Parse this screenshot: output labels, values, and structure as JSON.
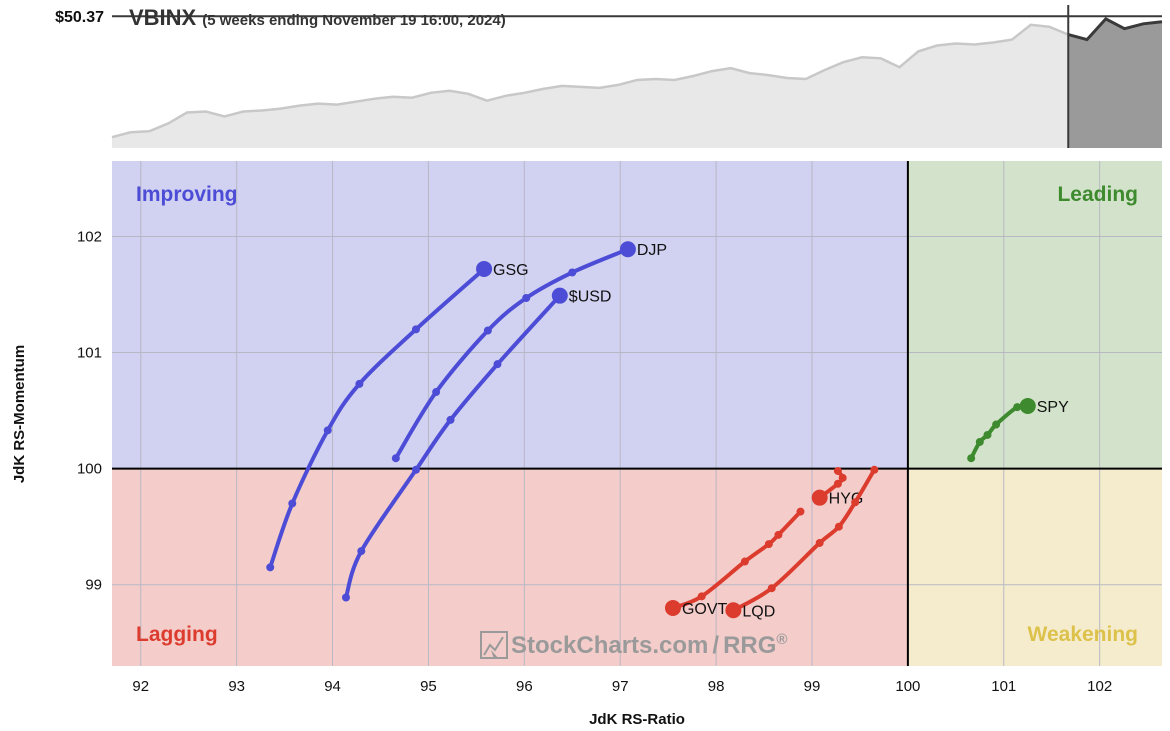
{
  "header": {
    "symbol": "VBINX",
    "subtitle": "(5 weeks ending November 19 16:00, 2024)",
    "price_label": "$50.37"
  },
  "watermark": {
    "text": "StockCharts.com",
    "separator": "/",
    "rrg": "RRG",
    "mark": "®"
  },
  "colors": {
    "improving_bg": "#d1d1f2",
    "leading_bg": "#d3e3cb",
    "lagging_bg": "#f4cdcb",
    "weakening_bg": "#f5ecce",
    "improving": "#4c4cd6",
    "leading": "#3e8a2e",
    "lagging": "#dc3c2e",
    "weakening": "#dcc24a",
    "price_fill": "#e8e8e8",
    "price_line": "#c8c8c8",
    "price_highlight_fill": "#9a9a9a",
    "price_highlight_line": "#3a3a3a"
  },
  "chart_data": {
    "type": "scatter",
    "title": "VBINX",
    "subtitle": "(5 weeks ending November 19 16:00, 2024)",
    "xlabel": "JdK RS-Ratio",
    "ylabel": "JdK RS-Momentum",
    "xlim": [
      91.7,
      102.65
    ],
    "ylim": [
      98.3,
      102.65
    ],
    "xticks": [
      92,
      93,
      94,
      95,
      96,
      97,
      98,
      99,
      100,
      101,
      102
    ],
    "yticks": [
      99,
      100,
      101,
      102
    ],
    "grid": true,
    "quadrants": [
      {
        "name": "Improving",
        "position": "top-left"
      },
      {
        "name": "Leading",
        "position": "top-right"
      },
      {
        "name": "Lagging",
        "position": "bottom-left"
      },
      {
        "name": "Weakening",
        "position": "bottom-right"
      }
    ],
    "series": [
      {
        "name": "GSG",
        "quadrant": "Improving",
        "points": [
          [
            93.35,
            99.15
          ],
          [
            93.58,
            99.7
          ],
          [
            93.95,
            100.33
          ],
          [
            94.28,
            100.73
          ],
          [
            94.87,
            101.2
          ],
          [
            95.58,
            101.72
          ]
        ]
      },
      {
        "name": "DJP",
        "quadrant": "Improving",
        "points": [
          [
            94.66,
            100.09
          ],
          [
            95.08,
            100.66
          ],
          [
            95.62,
            101.19
          ],
          [
            96.02,
            101.47
          ],
          [
            96.5,
            101.69
          ],
          [
            97.08,
            101.89
          ]
        ]
      },
      {
        "name": "$USD",
        "quadrant": "Improving",
        "points": [
          [
            94.14,
            98.89
          ],
          [
            94.3,
            99.29
          ],
          [
            94.87,
            99.99
          ],
          [
            95.23,
            100.42
          ],
          [
            95.72,
            100.9
          ],
          [
            96.37,
            101.49
          ]
        ]
      },
      {
        "name": "SPY",
        "quadrant": "Leading",
        "points": [
          [
            100.66,
            100.09
          ],
          [
            100.75,
            100.23
          ],
          [
            100.83,
            100.29
          ],
          [
            100.92,
            100.38
          ],
          [
            101.14,
            100.53
          ],
          [
            101.25,
            100.54
          ]
        ]
      },
      {
        "name": "HYG",
        "quadrant": "Lagging",
        "points": [
          [
            99.27,
            99.98
          ],
          [
            99.32,
            99.92
          ],
          [
            99.27,
            99.87
          ],
          [
            99.08,
            99.75
          ]
        ]
      },
      {
        "name": "GOVT",
        "quadrant": "Lagging",
        "points": [
          [
            98.88,
            99.63
          ],
          [
            98.65,
            99.43
          ],
          [
            98.55,
            99.35
          ],
          [
            98.3,
            99.2
          ],
          [
            97.85,
            98.9
          ],
          [
            97.55,
            98.8
          ]
        ]
      },
      {
        "name": "LQD",
        "quadrant": "Lagging",
        "points": [
          [
            99.65,
            99.99
          ],
          [
            99.45,
            99.71
          ],
          [
            99.28,
            99.5
          ],
          [
            99.08,
            99.36
          ],
          [
            98.58,
            98.97
          ],
          [
            98.18,
            98.78
          ]
        ]
      }
    ],
    "benchmark_price": {
      "label": "$50.37",
      "values": [
        38.1,
        38.6,
        38.7,
        39.5,
        40.6,
        40.7,
        40.2,
        40.7,
        40.8,
        41.0,
        41.3,
        41.5,
        41.4,
        41.7,
        42.0,
        42.2,
        42.1,
        42.6,
        42.8,
        42.5,
        41.8,
        42.3,
        42.6,
        43.0,
        43.3,
        43.2,
        43.1,
        43.4,
        43.9,
        44.0,
        43.9,
        44.3,
        44.8,
        45.1,
        44.6,
        44.4,
        44.1,
        44.0,
        44.9,
        45.7,
        46.2,
        46.1,
        45.2,
        46.8,
        47.4,
        47.6,
        47.5,
        47.7,
        48.0,
        49.5,
        49.3,
        48.5,
        48.0,
        50.1,
        49.1,
        49.6,
        49.8
      ]
    }
  }
}
